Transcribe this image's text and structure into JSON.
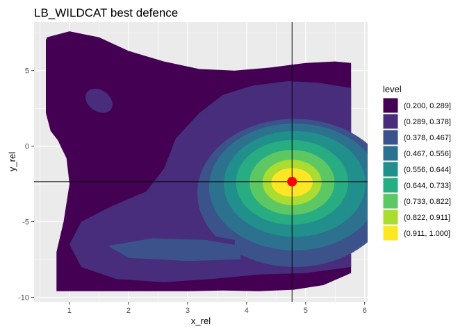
{
  "chart_data": {
    "type": "contour",
    "title": "LB_WILDCAT best defence",
    "xlabel": "x_rel",
    "ylabel": "y_rel",
    "xlim": [
      0.4,
      6.05
    ],
    "ylim": [
      -10.3,
      8.2
    ],
    "x_ticks": [
      1,
      2,
      3,
      4,
      5,
      6
    ],
    "y_ticks": [
      5,
      0,
      -5,
      -10
    ],
    "x_tick_labels": [
      "1",
      "2",
      "3",
      "4",
      "5",
      "6"
    ],
    "y_tick_labels": [
      "5",
      "0",
      "-5",
      "-10"
    ],
    "grid": true,
    "legend": {
      "title": "level",
      "placement": "right",
      "entries": [
        {
          "label": "(0.200, 0.289]",
          "color": "#440154"
        },
        {
          "label": "(0.289, 0.378]",
          "color": "#472D7B"
        },
        {
          "label": "(0.378, 0.467]",
          "color": "#3B528B"
        },
        {
          "label": "(0.467, 0.556]",
          "color": "#2C728E"
        },
        {
          "label": "(0.556, 0.644]",
          "color": "#21908C"
        },
        {
          "label": "(0.644, 0.733]",
          "color": "#27AD81"
        },
        {
          "label": "(0.733, 0.822]",
          "color": "#5DC863"
        },
        {
          "label": "(0.822, 0.911]",
          "color": "#AADC32"
        },
        {
          "label": "(0.911, 1.000]",
          "color": "#FDE725"
        }
      ]
    },
    "reference_lines": {
      "x": 4.77,
      "y": -2.35
    },
    "highlight_point": {
      "x": 4.77,
      "y": -2.35,
      "color": "#FF0000"
    },
    "colors": {
      "panel": "#EBEBEB",
      "grid": "#FFFFFF",
      "text": "#4D4D4D"
    }
  }
}
